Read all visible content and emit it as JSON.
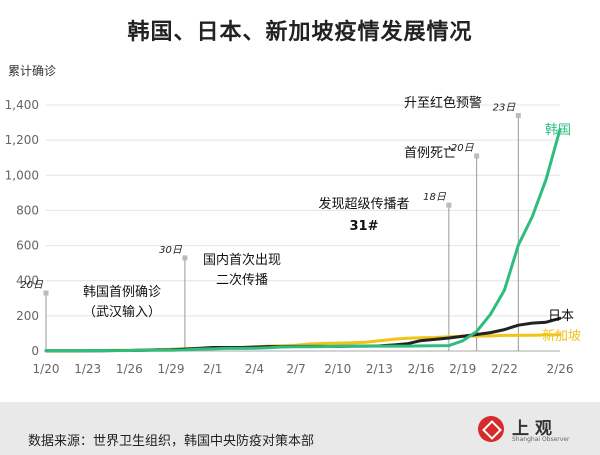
{
  "title": "韩国、日本、新加坡疫情发展情况",
  "footer": {
    "source": "数据来源：世界卫生组织，韩国中央防疫对策本部",
    "logo_name": "上观",
    "logo_sub": "Shanghai Observer"
  },
  "chart_data": {
    "type": "line",
    "ylabel": "累计确诊",
    "ylim": [
      0,
      1400
    ],
    "yticks": [
      0,
      200,
      400,
      600,
      800,
      1000,
      1200,
      1400
    ],
    "ytick_labels": [
      "0",
      "200",
      "400",
      "600",
      "800",
      "1,000",
      "1,200",
      "1,400"
    ],
    "xtick_labels": [
      "1/20",
      "1/23",
      "1/26",
      "1/29",
      "2/1",
      "2/4",
      "2/7",
      "2/10",
      "2/13",
      "2/16",
      "2/19",
      "2/22",
      "2/26"
    ],
    "grid": true,
    "x": [
      "1/20",
      "1/21",
      "1/22",
      "1/23",
      "1/24",
      "1/25",
      "1/26",
      "1/27",
      "1/28",
      "1/29",
      "1/30",
      "1/31",
      "2/1",
      "2/2",
      "2/3",
      "2/4",
      "2/5",
      "2/6",
      "2/7",
      "2/8",
      "2/9",
      "2/10",
      "2/11",
      "2/12",
      "2/13",
      "2/14",
      "2/15",
      "2/16",
      "2/17",
      "2/18",
      "2/19",
      "2/20",
      "2/21",
      "2/22",
      "2/23",
      "2/24",
      "2/25",
      "2/26"
    ],
    "series": [
      {
        "name": "韩国",
        "color": "#2ebd7f",
        "values": [
          1,
          1,
          1,
          2,
          2,
          2,
          3,
          4,
          4,
          4,
          6,
          11,
          12,
          15,
          15,
          16,
          18,
          23,
          24,
          24,
          25,
          27,
          28,
          28,
          28,
          28,
          28,
          29,
          30,
          31,
          58,
          111,
          209,
          346,
          602,
          763,
          977,
          1261
        ]
      },
      {
        "name": "日本",
        "color": "#222222",
        "values": [
          1,
          1,
          1,
          1,
          1,
          3,
          3,
          4,
          6,
          7,
          11,
          15,
          20,
          20,
          20,
          22,
          25,
          25,
          26,
          26,
          26,
          26,
          28,
          28,
          29,
          34,
          41,
          59,
          66,
          74,
          84,
          94,
          105,
          122,
          147,
          159,
          164,
          186
        ]
      },
      {
        "name": "新加坡",
        "color": "#f0c419",
        "values": [
          0,
          0,
          0,
          1,
          3,
          4,
          4,
          5,
          7,
          10,
          13,
          16,
          18,
          18,
          18,
          24,
          28,
          30,
          33,
          40,
          43,
          45,
          47,
          50,
          58,
          67,
          72,
          75,
          77,
          81,
          84,
          85,
          86,
          89,
          89,
          90,
          91,
          93
        ]
      }
    ],
    "annotations": [
      {
        "date": "1/20",
        "y": 330,
        "date_label": "20日",
        "text": [
          "韩国首例确诊",
          "（武汉输入）"
        ]
      },
      {
        "date": "1/30",
        "y": 530,
        "date_label": "30日",
        "text": [
          "国内首次出现",
          "二次传播"
        ]
      },
      {
        "date": "2/18",
        "y": 830,
        "date_label": "18日",
        "text": [
          "发现超级传播者",
          "31#"
        ]
      },
      {
        "date": "2/20",
        "y": 1110,
        "date_label": "20日",
        "text": [
          "首例死亡"
        ]
      },
      {
        "date": "2/23",
        "y": 1340,
        "date_label": "23日",
        "text": [
          "升至红色预警"
        ]
      }
    ]
  }
}
